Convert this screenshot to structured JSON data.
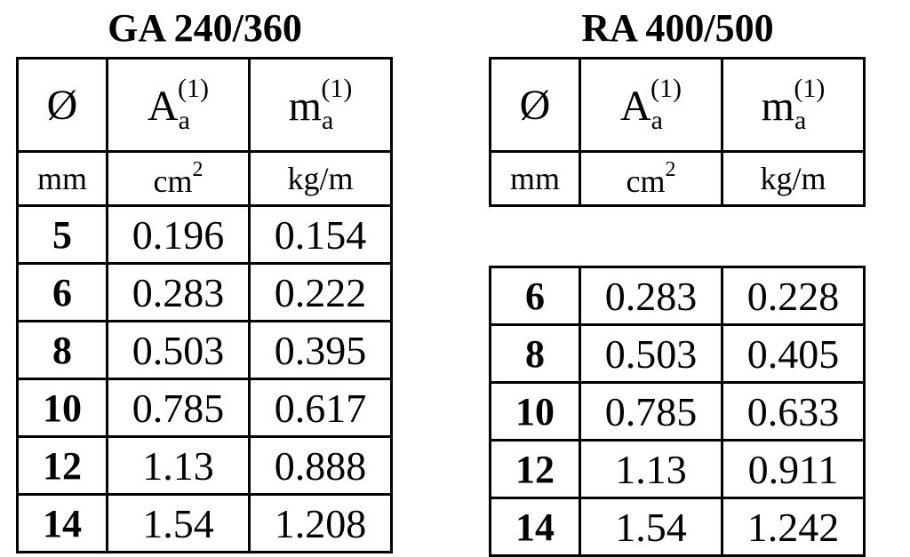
{
  "left": {
    "title": "GA 240/360",
    "header": {
      "diameter": "Ø",
      "area_symbol": "A",
      "area_sub": "a",
      "area_note": "(1)",
      "mass_symbol": "m",
      "mass_sub": "a",
      "mass_note": "(1)"
    },
    "units": {
      "diameter": "mm",
      "area_base": "cm",
      "area_exp": "2",
      "mass": "kg/m"
    },
    "rows": [
      {
        "d": "5",
        "a": "0.196",
        "m": "0.154"
      },
      {
        "d": "6",
        "a": "0.283",
        "m": "0.222"
      },
      {
        "d": "8",
        "a": "0.503",
        "m": "0.395"
      },
      {
        "d": "10",
        "a": "0.785",
        "m": "0.617"
      },
      {
        "d": "12",
        "a": "1.13",
        "m": "0.888"
      },
      {
        "d": "14",
        "a": "1.54",
        "m": "1.208"
      }
    ]
  },
  "right": {
    "title": "RA 400/500",
    "header": {
      "diameter": "Ø",
      "area_symbol": "A",
      "area_sub": "a",
      "area_note": "(1)",
      "mass_symbol": "m",
      "mass_sub": "a",
      "mass_note": "(1)"
    },
    "units": {
      "diameter": "mm",
      "area_base": "cm",
      "area_exp": "2",
      "mass": "kg/m"
    },
    "rows": [
      {
        "d": "6",
        "a": "0.283",
        "m": "0.228"
      },
      {
        "d": "8",
        "a": "0.503",
        "m": "0.405"
      },
      {
        "d": "10",
        "a": "0.785",
        "m": "0.633"
      },
      {
        "d": "12",
        "a": "1.13",
        "m": "0.911"
      },
      {
        "d": "14",
        "a": "1.54",
        "m": "1.242"
      }
    ]
  }
}
